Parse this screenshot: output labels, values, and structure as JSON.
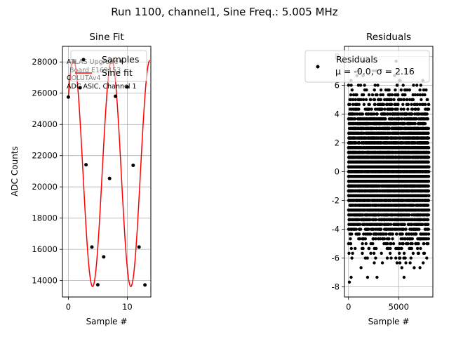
{
  "figure": {
    "suptitle": "Run 1100, channel1, Sine Freq.: 5.005 MHz"
  },
  "colors": {
    "fit_line": "#ff0000",
    "points": "#000000",
    "grid": "#b0b0b0"
  },
  "chart_data": [
    {
      "type": "scatter",
      "title": "Sine Fit",
      "xlabel": "Sample #",
      "ylabel": "ADC Counts",
      "xlim": [
        -1,
        14
      ],
      "ylim": [
        12950,
        29000
      ],
      "x_ticks": [
        0,
        10
      ],
      "y_ticks": [
        14000,
        16000,
        18000,
        20000,
        22000,
        24000,
        26000,
        28000
      ],
      "grid": true,
      "series": [
        {
          "name": "Samples",
          "style": "points",
          "x": [
            0,
            1,
            2,
            3,
            4,
            5,
            6,
            7,
            8,
            9,
            10,
            11,
            12,
            13
          ],
          "y": [
            25750,
            28000,
            26350,
            21420,
            16150,
            13730,
            15520,
            20540,
            25800,
            28050,
            26400,
            21380,
            16150,
            13720
          ]
        },
        {
          "name": "Sine fit",
          "style": "line",
          "model": {
            "offset": 20870,
            "amplitude": 7250,
            "period": 6.49,
            "phase_x": 0.87
          },
          "x_range": [
            0,
            13.8
          ]
        }
      ],
      "legend": {
        "position": "top-right"
      },
      "annotation": [
        "ATLAS Upgrade",
        "Board E169153",
        "COLUTAv4",
        "ADC ASIC, Channel 1"
      ]
    },
    {
      "type": "scatter",
      "title": "Residuals",
      "xlabel": "Sample #",
      "xlim": [
        -400,
        8400
      ],
      "ylim": [
        -8.7,
        8.7
      ],
      "x_ticks": [
        0,
        5000
      ],
      "y_ticks": [
        -8,
        -6,
        -4,
        -2,
        0,
        2,
        4,
        6,
        8
      ],
      "grid": true,
      "n_points": 8000,
      "sigma": 2.16,
      "series": [
        {
          "name": "Residuals",
          "style": "points"
        }
      ],
      "legend": {
        "position": "top-right",
        "line1": "Residuals",
        "line2": "μ = -0.0, σ = 2.16"
      }
    }
  ]
}
